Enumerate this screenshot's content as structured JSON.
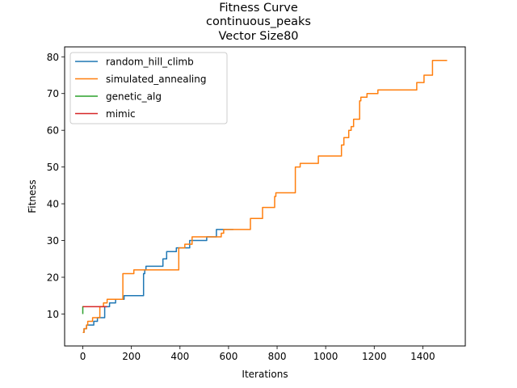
{
  "chart_data": {
    "type": "line",
    "title_lines": [
      "Fitness Curve",
      "continuous_peaks",
      "Vector Size80"
    ],
    "xlabel": "Iterations",
    "ylabel": "Fitness",
    "xlim": [
      -75,
      1575
    ],
    "ylim": [
      1.3,
      82.7
    ],
    "xticks": [
      0,
      200,
      400,
      600,
      800,
      1000,
      1200,
      1400
    ],
    "yticks": [
      10,
      20,
      30,
      40,
      50,
      60,
      70,
      80
    ],
    "legend_position": "upper-left",
    "series": [
      {
        "name": "random_hill_climb",
        "color": "#1f77b4",
        "points": [
          [
            0,
            5
          ],
          [
            5,
            5
          ],
          [
            5,
            6
          ],
          [
            15,
            6
          ],
          [
            15,
            7
          ],
          [
            45,
            7
          ],
          [
            45,
            8
          ],
          [
            60,
            8
          ],
          [
            60,
            9
          ],
          [
            90,
            9
          ],
          [
            90,
            12
          ],
          [
            110,
            12
          ],
          [
            110,
            13
          ],
          [
            135,
            13
          ],
          [
            135,
            14
          ],
          [
            170,
            14
          ],
          [
            170,
            15
          ],
          [
            250,
            15
          ],
          [
            250,
            21
          ],
          [
            255,
            21
          ],
          [
            255,
            22
          ],
          [
            260,
            22
          ],
          [
            260,
            23
          ],
          [
            330,
            23
          ],
          [
            330,
            25
          ],
          [
            345,
            25
          ],
          [
            345,
            27
          ],
          [
            385,
            27
          ],
          [
            385,
            28
          ],
          [
            440,
            28
          ],
          [
            440,
            30
          ],
          [
            510,
            30
          ],
          [
            510,
            31
          ],
          [
            550,
            31
          ],
          [
            550,
            33
          ],
          [
            620,
            33
          ]
        ]
      },
      {
        "name": "simulated_annealing",
        "color": "#ff7f0e",
        "points": [
          [
            0,
            5
          ],
          [
            5,
            5
          ],
          [
            5,
            6
          ],
          [
            15,
            6
          ],
          [
            15,
            7
          ],
          [
            20,
            7
          ],
          [
            20,
            8
          ],
          [
            40,
            8
          ],
          [
            40,
            9
          ],
          [
            70,
            9
          ],
          [
            70,
            12
          ],
          [
            85,
            12
          ],
          [
            85,
            13
          ],
          [
            100,
            13
          ],
          [
            100,
            14
          ],
          [
            165,
            14
          ],
          [
            165,
            21
          ],
          [
            210,
            21
          ],
          [
            210,
            22
          ],
          [
            395,
            22
          ],
          [
            395,
            28
          ],
          [
            420,
            28
          ],
          [
            420,
            29
          ],
          [
            450,
            29
          ],
          [
            450,
            31
          ],
          [
            570,
            31
          ],
          [
            570,
            32
          ],
          [
            580,
            32
          ],
          [
            580,
            33
          ],
          [
            650,
            33
          ],
          [
            690,
            33
          ],
          [
            690,
            36
          ],
          [
            740,
            36
          ],
          [
            740,
            39
          ],
          [
            790,
            39
          ],
          [
            790,
            42
          ],
          [
            795,
            42
          ],
          [
            795,
            43
          ],
          [
            875,
            43
          ],
          [
            875,
            50
          ],
          [
            895,
            50
          ],
          [
            895,
            51
          ],
          [
            970,
            51
          ],
          [
            970,
            53
          ],
          [
            1065,
            53
          ],
          [
            1065,
            56
          ],
          [
            1075,
            56
          ],
          [
            1075,
            58
          ],
          [
            1095,
            58
          ],
          [
            1095,
            60
          ],
          [
            1105,
            60
          ],
          [
            1105,
            61
          ],
          [
            1115,
            61
          ],
          [
            1115,
            63
          ],
          [
            1140,
            63
          ],
          [
            1140,
            68
          ],
          [
            1145,
            68
          ],
          [
            1145,
            69
          ],
          [
            1170,
            69
          ],
          [
            1170,
            70
          ],
          [
            1215,
            70
          ],
          [
            1215,
            71
          ],
          [
            1375,
            71
          ],
          [
            1375,
            73
          ],
          [
            1405,
            73
          ],
          [
            1405,
            75
          ],
          [
            1440,
            75
          ],
          [
            1440,
            79
          ],
          [
            1500,
            79
          ]
        ]
      },
      {
        "name": "genetic_alg",
        "color": "#2ca02c",
        "points": [
          [
            0,
            10
          ],
          [
            0,
            12
          ],
          [
            3,
            12
          ]
        ]
      },
      {
        "name": "mimic",
        "color": "#d62728",
        "points": [
          [
            0,
            12
          ],
          [
            100,
            12
          ]
        ]
      }
    ]
  }
}
